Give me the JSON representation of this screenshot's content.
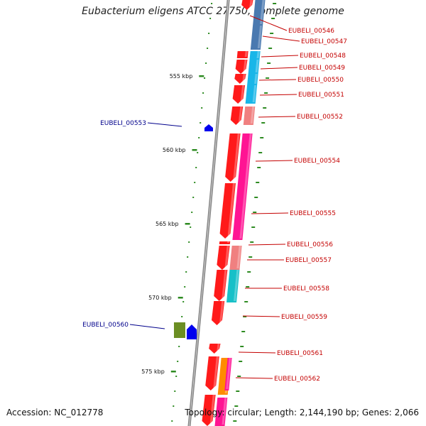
{
  "title": "Eubacterium eligens ATCC 27750, complete genome",
  "footer": {
    "accession": "Accession: NC_012778",
    "topology": "Topology: circular; Length: 2,144,190 bp; Genes: 2,066"
  },
  "colors": {
    "backbone": "#888888",
    "tick": "#2e8b22",
    "forward_label": "#c40000",
    "reverse_label": "#00008b",
    "cds_red": "#ff1a1a",
    "salmon": "#f08080",
    "steelblue": "#4a79b0",
    "cyan": "#19b6e8",
    "magenta": "#ff1493",
    "teal": "#17c0c8",
    "orange": "#ff8c00",
    "olive": "#6b8e23",
    "blue": "#0000ee"
  },
  "ticks": [
    {
      "label": "555 kbp"
    },
    {
      "label": "560 kbp"
    },
    {
      "label": "565 kbp"
    },
    {
      "label": "570 kbp"
    },
    {
      "label": "575 kbp"
    }
  ],
  "genes_forward": [
    "EUBELI_00546",
    "EUBELI_00547",
    "EUBELI_00548",
    "EUBELI_00549",
    "EUBELI_00550",
    "EUBELI_00551",
    "EUBELI_00552",
    "EUBELI_00554",
    "EUBELI_00555",
    "EUBELI_00556",
    "EUBELI_00557",
    "EUBELI_00558",
    "EUBELI_00559",
    "EUBELI_00561",
    "EUBELI_00562"
  ],
  "genes_reverse": [
    "EUBELI_00553",
    "EUBELI_00560"
  ]
}
